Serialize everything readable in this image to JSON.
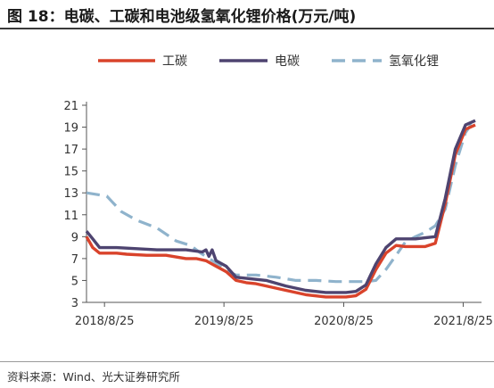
{
  "title": "图 18：电碳、工碳和电池级氢氧化锂价格(万元/吨)",
  "source": "资料来源：Wind、光大证券研究所",
  "chart_data": {
    "type": "line",
    "title": "图 18：电碳、工碳和电池级氢氧化锂价格(万元/吨)",
    "xlabel": "",
    "ylabel": "",
    "xlim": [
      "2018-07-01",
      "2021-10-20"
    ],
    "ylim": [
      3,
      21
    ],
    "yticks": [
      3,
      5,
      7,
      9,
      11,
      13,
      15,
      17,
      19,
      21
    ],
    "xticks": [
      "2018-08-25",
      "2019-08-25",
      "2020-08-25",
      "2021-08-25"
    ],
    "xtick_labels": [
      "2018/8/25",
      "2019/8/25",
      "2020/8/25",
      "2021/8/25"
    ],
    "grid": false,
    "legend_position": "top",
    "series": [
      {
        "name": "工碳",
        "color": "#d9432b",
        "dash": "solid",
        "points": [
          [
            "2018-07-01",
            9.0
          ],
          [
            "2018-07-20",
            8.0
          ],
          [
            "2018-08-10",
            7.5
          ],
          [
            "2018-10-01",
            7.5
          ],
          [
            "2018-11-01",
            7.4
          ],
          [
            "2019-01-01",
            7.3
          ],
          [
            "2019-03-01",
            7.3
          ],
          [
            "2019-05-01",
            7.0
          ],
          [
            "2019-06-01",
            7.0
          ],
          [
            "2019-07-01",
            6.8
          ],
          [
            "2019-08-01",
            6.3
          ],
          [
            "2019-09-01",
            5.8
          ],
          [
            "2019-10-01",
            5.0
          ],
          [
            "2019-11-01",
            4.8
          ],
          [
            "2019-12-01",
            4.7
          ],
          [
            "2020-01-01",
            4.5
          ],
          [
            "2020-03-01",
            4.1
          ],
          [
            "2020-05-01",
            3.7
          ],
          [
            "2020-07-01",
            3.5
          ],
          [
            "2020-09-01",
            3.5
          ],
          [
            "2020-10-01",
            3.6
          ],
          [
            "2020-11-01",
            4.2
          ],
          [
            "2020-12-01",
            6.0
          ],
          [
            "2021-01-01",
            7.5
          ],
          [
            "2021-02-01",
            8.2
          ],
          [
            "2021-03-01",
            8.1
          ],
          [
            "2021-04-01",
            8.1
          ],
          [
            "2021-05-01",
            8.1
          ],
          [
            "2021-06-01",
            8.4
          ],
          [
            "2021-07-01",
            12.0
          ],
          [
            "2021-08-01",
            16.5
          ],
          [
            "2021-09-01",
            18.8
          ],
          [
            "2021-10-01",
            19.2
          ]
        ]
      },
      {
        "name": "电碳",
        "color": "#4e4470",
        "dash": "solid",
        "points": [
          [
            "2018-07-01",
            9.5
          ],
          [
            "2018-07-20",
            8.8
          ],
          [
            "2018-08-10",
            8.0
          ],
          [
            "2018-10-01",
            8.0
          ],
          [
            "2019-02-01",
            7.8
          ],
          [
            "2019-05-01",
            7.8
          ],
          [
            "2019-06-20",
            7.6
          ],
          [
            "2019-07-01",
            7.8
          ],
          [
            "2019-07-10",
            7.2
          ],
          [
            "2019-07-20",
            7.8
          ],
          [
            "2019-08-01",
            6.8
          ],
          [
            "2019-09-01",
            6.3
          ],
          [
            "2019-10-01",
            5.3
          ],
          [
            "2019-12-01",
            5.1
          ],
          [
            "2020-01-01",
            5.0
          ],
          [
            "2020-03-01",
            4.5
          ],
          [
            "2020-05-01",
            4.1
          ],
          [
            "2020-07-01",
            3.9
          ],
          [
            "2020-09-01",
            3.9
          ],
          [
            "2020-10-01",
            4.0
          ],
          [
            "2020-11-01",
            4.6
          ],
          [
            "2020-12-01",
            6.5
          ],
          [
            "2021-01-01",
            8.0
          ],
          [
            "2021-02-01",
            8.8
          ],
          [
            "2021-03-01",
            8.8
          ],
          [
            "2021-04-01",
            8.8
          ],
          [
            "2021-05-01",
            8.9
          ],
          [
            "2021-06-01",
            9.0
          ],
          [
            "2021-07-01",
            12.5
          ],
          [
            "2021-08-01",
            17.0
          ],
          [
            "2021-09-01",
            19.2
          ],
          [
            "2021-10-01",
            19.6
          ]
        ]
      },
      {
        "name": "氢氧化锂",
        "color": "#8fb3cc",
        "dash": "dashed",
        "points": [
          [
            "2018-07-01",
            13.0
          ],
          [
            "2018-09-01",
            12.7
          ],
          [
            "2018-10-15",
            11.3
          ],
          [
            "2018-12-01",
            10.5
          ],
          [
            "2019-02-01",
            9.8
          ],
          [
            "2019-04-01",
            8.6
          ],
          [
            "2019-05-15",
            8.2
          ],
          [
            "2019-06-15",
            7.5
          ],
          [
            "2019-08-01",
            6.6
          ],
          [
            "2019-09-01",
            5.9
          ],
          [
            "2019-10-01",
            5.5
          ],
          [
            "2019-12-01",
            5.5
          ],
          [
            "2020-02-01",
            5.3
          ],
          [
            "2020-04-01",
            5.0
          ],
          [
            "2020-06-01",
            5.0
          ],
          [
            "2020-08-01",
            4.9
          ],
          [
            "2020-10-01",
            4.9
          ],
          [
            "2020-11-01",
            4.9
          ],
          [
            "2020-12-01",
            5.0
          ],
          [
            "2021-01-01",
            6.0
          ],
          [
            "2021-02-01",
            7.3
          ],
          [
            "2021-03-01",
            8.5
          ],
          [
            "2021-04-01",
            9.0
          ],
          [
            "2021-05-01",
            9.4
          ],
          [
            "2021-06-01",
            10.0
          ],
          [
            "2021-07-01",
            11.5
          ],
          [
            "2021-08-01",
            15.5
          ],
          [
            "2021-09-01",
            18.5
          ],
          [
            "2021-10-01",
            19.8
          ]
        ]
      }
    ]
  }
}
